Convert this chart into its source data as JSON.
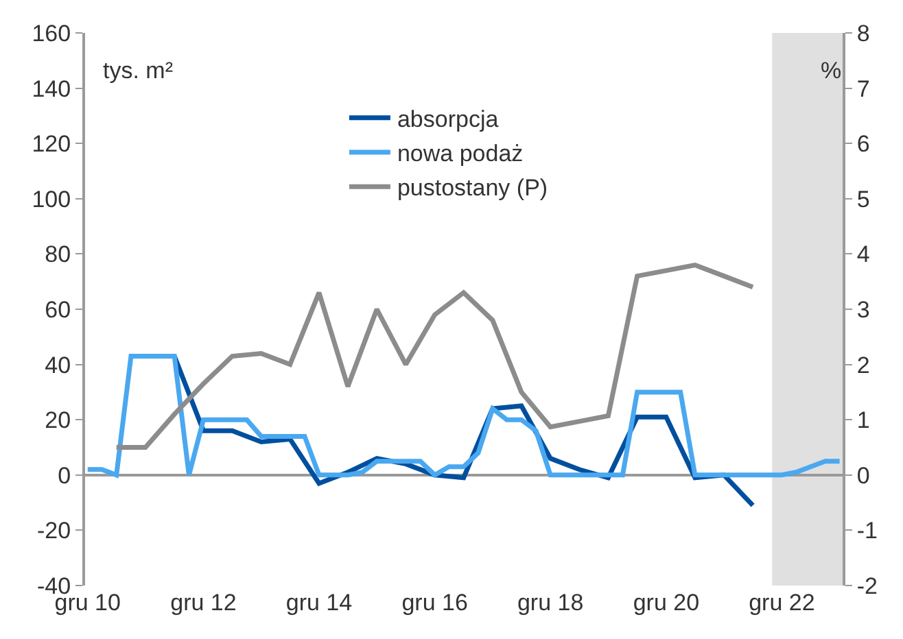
{
  "chart_data": {
    "type": "line",
    "ylabel": "tys. m²",
    "y2label": "%",
    "xlim": [
      "2010-11-15",
      "2023-12-20"
    ],
    "xticks": [
      {
        "value": "2010-12",
        "label": "gru 10"
      },
      {
        "value": "2012-12",
        "label": "gru 12"
      },
      {
        "value": "2014-12",
        "label": "gru 14"
      },
      {
        "value": "2016-12",
        "label": "gru 16"
      },
      {
        "value": "2018-12",
        "label": "gru 18"
      },
      {
        "value": "2020-12",
        "label": "gru 20"
      },
      {
        "value": "2022-12",
        "label": "gru 22"
      }
    ],
    "ylim": [
      -40,
      160
    ],
    "yticks": [
      -40,
      -20,
      0,
      20,
      40,
      60,
      80,
      100,
      120,
      140,
      160
    ],
    "y2lim": [
      -2,
      8
    ],
    "y2ticks": [
      -2,
      -1,
      0,
      1,
      2,
      3,
      4,
      5,
      6,
      7,
      8
    ],
    "legend": "top",
    "line_style": "solid",
    "marker": "none",
    "bands": [
      {
        "axis": "x",
        "from": "2022-10",
        "to": "2023-12-20",
        "color": "#e0e0e0"
      }
    ],
    "series": [
      {
        "name": "absorpcja",
        "color": "#004f9f",
        "x": [
          "2012-06",
          "2012-12",
          "2013-06",
          "2013-12",
          "2014-06",
          "2014-12",
          "2015-06",
          "2015-12",
          "2016-06",
          "2016-12",
          "2017-06",
          "2017-12",
          "2018-06",
          "2018-12",
          "2019-06",
          "2019-12",
          "2020-06",
          "2020-12",
          "2021-06",
          "2021-12",
          "2022-06"
        ],
        "values": [
          43,
          16,
          16,
          12,
          13,
          -3,
          1,
          6,
          4,
          0,
          -1,
          24,
          25,
          6,
          2,
          -1,
          21,
          21,
          -1,
          0,
          -11
        ]
      },
      {
        "name": "nowa podaż",
        "color": "#4aa8f0",
        "x": [
          "2010-12",
          "2011-03",
          "2011-06",
          "2011-09",
          "2011-12",
          "2012-03",
          "2012-06",
          "2012-09",
          "2012-12",
          "2013-03",
          "2013-06",
          "2013-09",
          "2013-12",
          "2014-03",
          "2014-06",
          "2014-09",
          "2014-12",
          "2015-03",
          "2015-06",
          "2015-09",
          "2015-12",
          "2016-03",
          "2016-06",
          "2016-09",
          "2016-12",
          "2017-03",
          "2017-06",
          "2017-09",
          "2017-12",
          "2018-03",
          "2018-06",
          "2018-09",
          "2018-12",
          "2019-03",
          "2019-06",
          "2019-09",
          "2019-12",
          "2020-03",
          "2020-06",
          "2020-09",
          "2020-12",
          "2021-03",
          "2021-06",
          "2021-09",
          "2021-12",
          "2022-03",
          "2022-06",
          "2022-09",
          "2022-12",
          "2023-03",
          "2023-06",
          "2023-09",
          "2023-12"
        ],
        "values": [
          2,
          2,
          0,
          43,
          43,
          43,
          43,
          0,
          20,
          20,
          20,
          20,
          14,
          14,
          14,
          14,
          0,
          0,
          0,
          1,
          5,
          5,
          5,
          5,
          0,
          3,
          3,
          8,
          24,
          20,
          20,
          16,
          0,
          0,
          0,
          0,
          0,
          0,
          30,
          30,
          30,
          30,
          0,
          0,
          0,
          0,
          0,
          0,
          0,
          1,
          3,
          5,
          5
        ]
      },
      {
        "name": "pustostany (P)",
        "color": "#8c8c8c",
        "axis": "y2",
        "x": [
          "2011-06",
          "2011-12",
          "2012-06",
          "2012-12",
          "2013-06",
          "2013-12",
          "2014-06",
          "2014-12",
          "2015-06",
          "2015-12",
          "2016-06",
          "2016-12",
          "2017-06",
          "2017-12",
          "2018-06",
          "2018-12",
          "2019-06",
          "2019-12",
          "2020-06",
          "2020-12",
          "2021-06",
          "2021-12",
          "2022-06"
        ],
        "values": [
          0.5,
          0.5,
          1.1,
          1.65,
          2.15,
          2.2,
          2.0,
          3.3,
          1.6,
          3.0,
          2.0,
          2.9,
          3.3,
          2.8,
          1.5,
          0.87,
          0.97,
          1.07,
          3.6,
          3.7,
          3.8,
          3.6,
          3.4
        ]
      }
    ]
  }
}
